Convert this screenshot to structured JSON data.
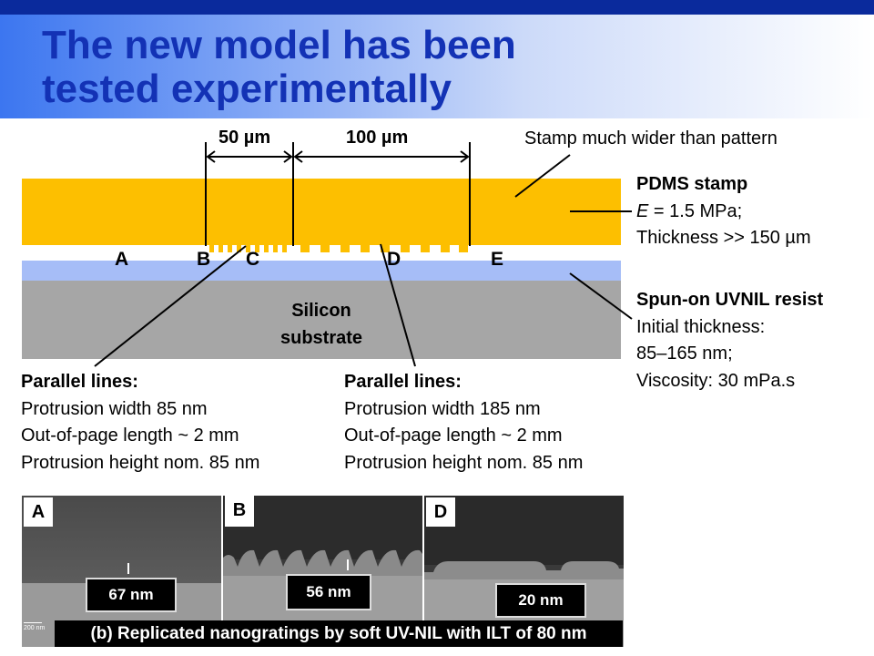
{
  "title": {
    "line1": "The new model has been",
    "line2": "tested experimentally"
  },
  "dimensions": {
    "left": "50 µm",
    "right": "100 µm"
  },
  "points": [
    "A",
    "B",
    "C",
    "D",
    "E"
  ],
  "substrate": {
    "line1": "Silicon",
    "line2": "substrate"
  },
  "stamp_note": "Stamp much wider than pattern",
  "pdms": {
    "title": "PDMS stamp",
    "e_symbol": "E",
    "e_rest": " = 1.5 MPa;",
    "thickness": "Thickness >> 150 µm"
  },
  "resist": {
    "title": "Spun-on UVNIL resist",
    "line1": "Initial thickness:",
    "line2": "85–165 nm;",
    "line3": "Viscosity: 30 mPa.s"
  },
  "callout_left": {
    "title": "Parallel lines:",
    "line1": "Protrusion width 85 nm",
    "line2": "Out-of-page length ~ 2 mm",
    "line3": "Protrusion height nom. 85 nm"
  },
  "callout_right": {
    "title": "Parallel lines:",
    "line1": "Protrusion width 185 nm",
    "line2": "Out-of-page length ~ 2 mm",
    "line3": "Protrusion height nom. 85 nm"
  },
  "sem": {
    "panels": [
      {
        "label": "A",
        "measurement": "67 nm"
      },
      {
        "label": "B",
        "measurement": "56 nm"
      },
      {
        "label": "D",
        "measurement": "20 nm"
      }
    ],
    "scale": "200 nm",
    "caption": "(b) Replicated nanogratings by soft UV-NIL with ILT of 80 nm"
  },
  "colors": {
    "stamp": "#fdbf00",
    "resist": "#a6bdf7",
    "substrate": "#a6a6a6",
    "title": "#1332b5",
    "top_bar": "#0a2a9c"
  }
}
